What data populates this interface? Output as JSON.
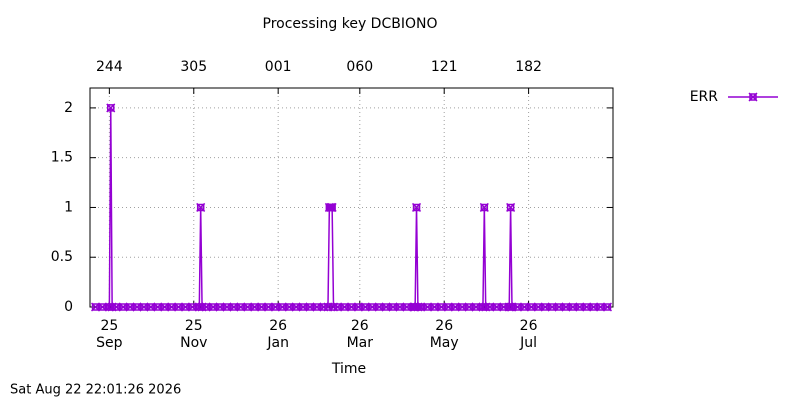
{
  "chart_data": {
    "type": "line",
    "title": "Processing key DCBIONO",
    "xlabel": "Time",
    "timestamp": "Sat Aug 22 22:01:26 2026",
    "x": [
      -10,
      -5,
      0,
      1,
      2,
      5,
      10,
      15,
      20,
      25,
      30,
      35,
      40,
      45,
      50,
      55,
      60,
      65,
      66,
      67,
      70,
      75,
      80,
      85,
      90,
      95,
      100,
      105,
      110,
      115,
      120,
      125,
      130,
      135,
      140,
      145,
      150,
      155,
      158,
      159,
      160,
      161,
      162,
      165,
      170,
      175,
      180,
      185,
      190,
      195,
      200,
      205,
      210,
      215,
      220,
      221,
      222,
      223,
      225,
      230,
      235,
      240,
      245,
      250,
      255,
      260,
      265,
      270,
      271,
      272,
      275,
      280,
      285,
      289,
      290,
      291,
      295,
      300,
      305,
      310,
      315,
      320,
      325,
      330,
      335,
      340,
      345,
      350,
      355,
      360
    ],
    "series": [
      {
        "name": "ERR",
        "color": "#9400d3",
        "values": [
          0,
          0,
          0,
          2,
          0,
          0,
          0,
          0,
          0,
          0,
          0,
          0,
          0,
          0,
          0,
          0,
          0,
          0,
          1,
          0,
          0,
          0,
          0,
          0,
          0,
          0,
          0,
          0,
          0,
          0,
          0,
          0,
          0,
          0,
          0,
          0,
          0,
          0,
          0,
          1,
          1,
          1,
          0,
          0,
          0,
          0,
          0,
          0,
          0,
          0,
          0,
          0,
          0,
          0,
          0,
          0,
          1,
          0,
          0,
          0,
          0,
          0,
          0,
          0,
          0,
          0,
          0,
          0,
          1,
          0,
          0,
          0,
          0,
          0,
          1,
          0,
          0,
          0,
          0,
          0,
          0,
          0,
          0,
          0,
          0,
          0,
          0,
          0,
          0,
          0
        ]
      }
    ],
    "xlim": [
      -14,
      364
    ],
    "xticks": [
      {
        "value": 0,
        "label": "25\nSep"
      },
      {
        "value": 61,
        "label": "25\nNov"
      },
      {
        "value": 122,
        "label": "26\nJan"
      },
      {
        "value": 181,
        "label": "26\nMar"
      },
      {
        "value": 242,
        "label": "26\nMay"
      },
      {
        "value": 303,
        "label": "26\nJul"
      }
    ],
    "x2ticks": [
      {
        "value": 0,
        "label": "244"
      },
      {
        "value": 61,
        "label": "305"
      },
      {
        "value": 122,
        "label": "001"
      },
      {
        "value": 181,
        "label": "060"
      },
      {
        "value": 242,
        "label": "121"
      },
      {
        "value": 303,
        "label": "182"
      }
    ],
    "ylim": [
      0,
      2.2
    ],
    "yticks": [
      0,
      0.5,
      1,
      1.5,
      2
    ],
    "grid": true,
    "legend": "outside-right"
  }
}
